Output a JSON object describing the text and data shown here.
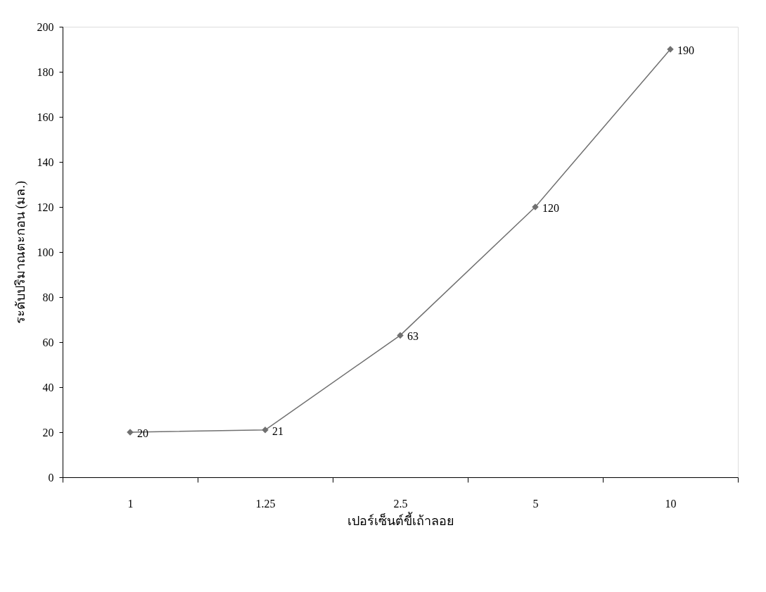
{
  "chart_data": {
    "type": "line",
    "xlabel": "เปอร์เซ็นต์ขี้เถ้าลอย",
    "ylabel": "ระดับปริมาณตะกอน (มล.)",
    "categories": [
      "1",
      "1.25",
      "2.5",
      "5",
      "10"
    ],
    "series": [
      {
        "color": "#707070",
        "values": [
          20,
          21,
          63,
          120,
          190
        ]
      }
    ],
    "ylim": [
      0,
      200
    ],
    "yticks": [
      0,
      20,
      40,
      60,
      80,
      100,
      120,
      140,
      160,
      180,
      200
    ],
    "grid": false,
    "legend": false,
    "marker": "diamond",
    "line_style": "solid",
    "data_labels": true
  }
}
